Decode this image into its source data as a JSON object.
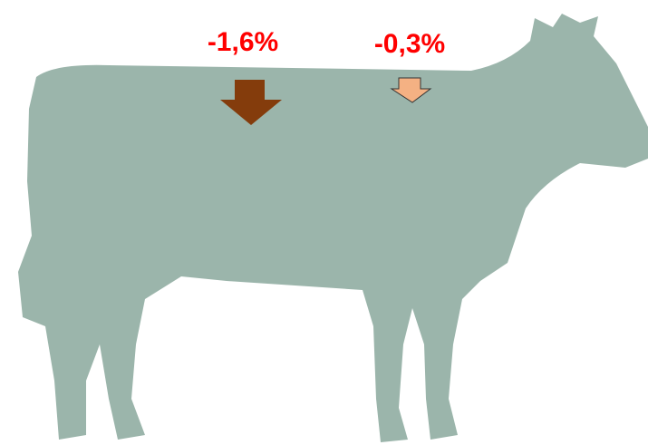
{
  "labels": [
    {
      "text": "-1,6%"
    },
    {
      "text": "-0,3%"
    }
  ]
}
